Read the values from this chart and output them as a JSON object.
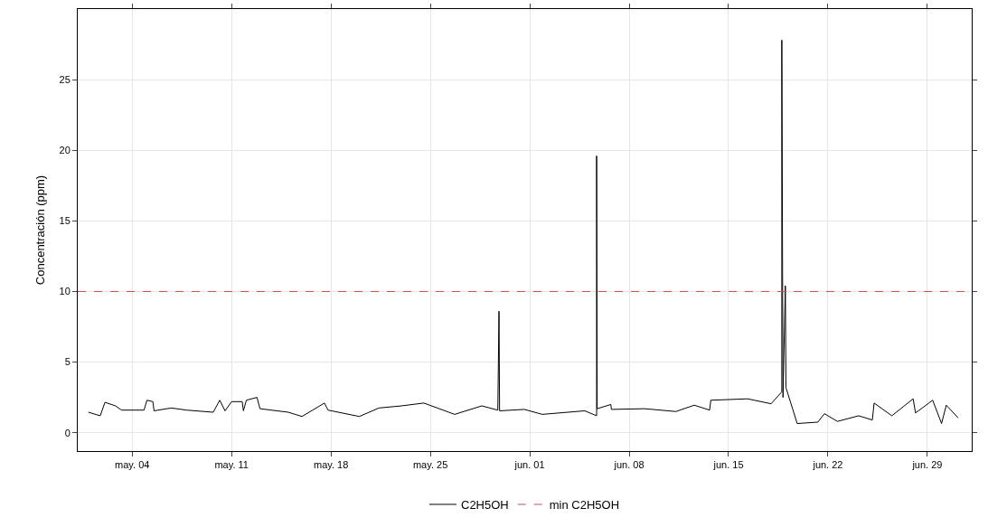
{
  "chart_data": {
    "type": "line",
    "ylabel": "Concentración (ppm)",
    "series": [
      {
        "name": "C2H5OH",
        "color": "#000000",
        "x": [
          "--04-30T22:00",
          "--05-01T18:00",
          "--05-02T02:00",
          "--05-02T20:00",
          "--05-03T06:00",
          "--05-04T20:00",
          "--05-05T01:00",
          "--05-05T11:00",
          "--05-05T13:00",
          "--05-06T18:00",
          "--05-07T20:00",
          "--05-09T17:00",
          "--05-10T04:00",
          "--05-10T13:00",
          "--05-11T00:00",
          "--05-11T18:00",
          "--05-11T20:00",
          "--05-12T01:00",
          "--05-12T19:00",
          "--05-13T00:00",
          "--05-15T00:00",
          "--05-15T23:00",
          "--05-17T13:00",
          "--05-17T19:00",
          "--05-20T00:00",
          "--05-21T09:00",
          "--05-22T23:00",
          "--05-24T13:00",
          "--05-26T17:00",
          "--05-28T15:00",
          "--05-29T18:00",
          "--05-29T20:00",
          "--05-29T21:00",
          "--05-31T15:00",
          "--06-01T21:00",
          "--06-04T21:00",
          "--06-05T17:00",
          "--06-05T17:00",
          "--06-05T18:00",
          "--06-06T17:00",
          "--06-06T18:00",
          "--06-09T02:00",
          "--06-11T07:00",
          "--06-12T14:00",
          "--06-13T16:00",
          "--06-13T18:00",
          "--06-16T08:00",
          "--06-18T00:00",
          "--06-18T18:00",
          "--06-18T18:00",
          "--06-18T20:00",
          "--06-19T00:00",
          "--06-19T01:00",
          "--06-19T20:00",
          "--06-21T07:00",
          "--06-21T18:00",
          "--06-22T16:00",
          "--06-24T04:00",
          "--06-25T03:00",
          "--06-25T06:00",
          "--06-26T12:00",
          "--06-28T00:00",
          "--06-28T04:00",
          "--06-29T09:00",
          "--06-30T00:00",
          "--06-30T08:00",
          "--07-01T04:00"
        ],
        "values": [
          1.45,
          1.2,
          2.15,
          1.9,
          1.6,
          1.6,
          2.3,
          2.2,
          1.55,
          1.75,
          1.6,
          1.45,
          2.3,
          1.55,
          2.2,
          2.2,
          1.55,
          2.3,
          2.5,
          1.7,
          1.45,
          1.15,
          2.1,
          1.6,
          1.15,
          1.75,
          1.9,
          2.1,
          1.3,
          1.9,
          1.6,
          8.6,
          1.55,
          1.65,
          1.3,
          1.55,
          1.2,
          19.6,
          1.7,
          2.0,
          1.65,
          1.7,
          1.5,
          1.95,
          1.6,
          2.3,
          2.4,
          2.05,
          2.9,
          27.8,
          2.5,
          10.4,
          3.2,
          0.65,
          0.75,
          1.35,
          0.8,
          1.2,
          0.9,
          2.1,
          1.2,
          2.4,
          1.4,
          2.3,
          0.65,
          1.95,
          1.05
        ]
      }
    ],
    "xlim": [
      "--04-30T04:00",
      "--07-02T03:00"
    ],
    "xticks": [
      {
        "value": "--05-04",
        "label": "may. 04"
      },
      {
        "value": "--05-11",
        "label": "may. 11"
      },
      {
        "value": "--05-18",
        "label": "may. 18"
      },
      {
        "value": "--05-25",
        "label": "may. 25"
      },
      {
        "value": "--06-01",
        "label": "jun. 01"
      },
      {
        "value": "--06-08",
        "label": "jun. 08"
      },
      {
        "value": "--06-15",
        "label": "jun. 15"
      },
      {
        "value": "--06-22",
        "label": "jun. 22"
      },
      {
        "value": "--06-29",
        "label": "jun. 29"
      }
    ],
    "ylim": [
      -1.3,
      30
    ],
    "yticks": [
      0,
      5,
      10,
      15,
      20,
      25
    ],
    "ref_lines": [
      {
        "axis": "y",
        "value": 10,
        "label": "min C2H5OH",
        "color": "#c0504d",
        "line_style": "dashed"
      }
    ],
    "grid": true,
    "legend": "bottom",
    "marker": "none",
    "line_style": "solid"
  }
}
